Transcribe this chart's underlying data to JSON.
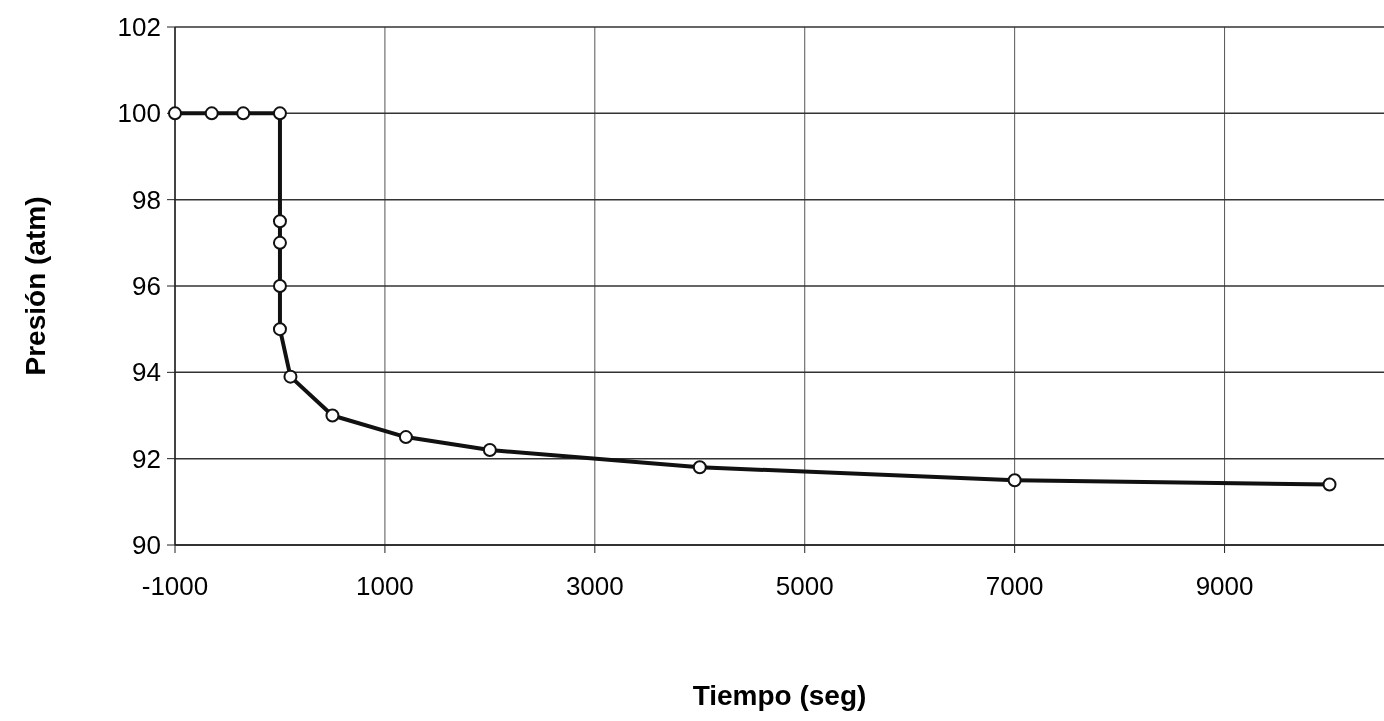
{
  "chart_data": {
    "type": "line",
    "xlabel": "Tiempo (seg)",
    "ylabel": "Presión (atm)",
    "xlim": [
      -1000,
      10500
    ],
    "xticks": [
      -1000,
      1000,
      3000,
      5000,
      7000,
      9000
    ],
    "ylim": [
      90,
      102
    ],
    "yticks": [
      90,
      92,
      94,
      96,
      98,
      100,
      102
    ],
    "grid": true,
    "marker": "circle",
    "line_style": "solid",
    "series": [
      {
        "color": "#111111",
        "x": [
          -1000,
          -650,
          -350,
          0,
          0,
          0,
          0,
          0,
          100,
          500,
          1200,
          2000,
          4000,
          7000,
          10000
        ],
        "values": [
          100,
          100,
          100,
          100,
          97.5,
          97,
          96,
          95,
          93.9,
          93,
          92.5,
          92.2,
          91.8,
          91.5,
          91.4
        ]
      }
    ]
  }
}
